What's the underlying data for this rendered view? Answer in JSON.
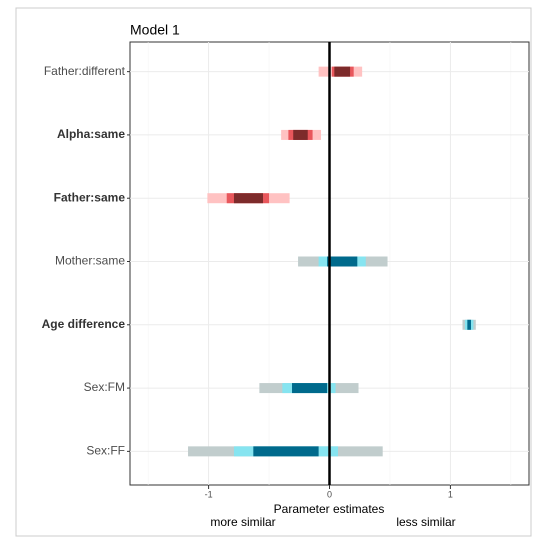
{
  "chart_data": {
    "type": "interval",
    "title": "Model 1",
    "xlabel": "Parameter estimates",
    "left_note": "more similar",
    "right_note": "less similar",
    "categories": [
      "Father:different",
      "Alpha:same",
      "Father:same",
      "Mother:same",
      "Age difference",
      "Sex:FM",
      "Sex:FF"
    ],
    "bold": [
      false,
      true,
      true,
      false,
      true,
      false,
      false
    ],
    "colors": [
      [
        "#ffc2c2",
        "#e8575c",
        "#7d2b2b"
      ],
      [
        "#ffc2c2",
        "#e8575c",
        "#7d2b2b"
      ],
      [
        "#ffc2c2",
        "#e8575c",
        "#7d2b2b"
      ],
      [
        "#c1cdcd",
        "#86e4f0",
        "#006a8c"
      ],
      [
        "#c1cdcd",
        "#86e4f0",
        "#006a8c"
      ],
      [
        "#c1cdcd",
        "#86e4f0",
        "#006a8c"
      ],
      [
        "#c1cdcd",
        "#86e4f0",
        "#006a8c"
      ]
    ],
    "intervals": [
      {
        "low": [
          -0.09,
          -0.4,
          -1.01,
          -0.26,
          1.1,
          -0.58,
          -1.17
        ],
        "high": [
          0.27,
          -0.07,
          -0.33,
          0.48,
          1.21,
          0.24,
          0.44
        ]
      },
      {
        "low": [
          0.02,
          -0.34,
          -0.85,
          -0.09,
          1.12,
          -0.39,
          -0.79
        ],
        "high": [
          0.2,
          -0.14,
          -0.5,
          0.3,
          1.19,
          0.05,
          0.07
        ]
      },
      {
        "low": [
          0.04,
          -0.3,
          -0.79,
          -0.02,
          1.14,
          -0.31,
          -0.63
        ],
        "high": [
          0.17,
          -0.18,
          -0.55,
          0.23,
          1.17,
          -0.02,
          -0.09
        ]
      }
    ],
    "xlim": [
      -1.65,
      1.65
    ],
    "xticks": [
      -1,
      0,
      1
    ],
    "minor_xticks": [
      -1.5,
      -0.5,
      0.5,
      1.5
    ],
    "refline": 0,
    "grid": true
  }
}
